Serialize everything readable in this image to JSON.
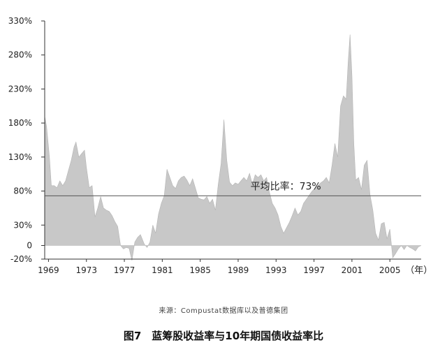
{
  "chart_data": {
    "type": "area",
    "title": "",
    "xlabel": "",
    "ylabel": "",
    "x_unit_label": "（年）",
    "xlim": [
      1968.6,
      2008.3
    ],
    "ylim": [
      -20,
      330
    ],
    "y_ticks": [
      -20,
      0,
      30,
      80,
      130,
      180,
      230,
      280,
      330
    ],
    "y_tick_labels": [
      "-20%",
      "0",
      "30%",
      "80%",
      "130%",
      "180%",
      "230%",
      "280%",
      "330%"
    ],
    "x_ticks": [
      1969,
      1973,
      1977,
      1981,
      1985,
      1989,
      1993,
      1997,
      2001,
      2005
    ],
    "x_tick_labels": [
      "1969",
      "1973",
      "1977",
      "1981",
      "1985",
      "1989",
      "1993",
      "1997",
      "2001",
      "2005"
    ],
    "grid": false,
    "fill_color": "#c8c8c8",
    "reference_line": {
      "value": 73,
      "label": "平均比率：73%"
    },
    "series": [
      {
        "name": "",
        "x": [
          1968.6,
          1968.8,
          1969.1,
          1969.3,
          1969.6,
          1969.9,
          1970.2,
          1970.5,
          1970.8,
          1971.1,
          1971.4,
          1971.7,
          1971.9,
          1972.2,
          1972.5,
          1972.8,
          1973.0,
          1973.3,
          1973.6,
          1973.9,
          1974.2,
          1974.5,
          1974.8,
          1975.1,
          1975.4,
          1975.7,
          1976.0,
          1976.3,
          1976.6,
          1976.9,
          1977.2,
          1977.5,
          1977.8,
          1978.1,
          1978.4,
          1978.7,
          1979.1,
          1979.4,
          1979.7,
          1980.0,
          1980.3,
          1980.6,
          1980.9,
          1981.2,
          1981.5,
          1981.8,
          1982.1,
          1982.4,
          1982.7,
          1983.0,
          1983.3,
          1983.6,
          1983.9,
          1984.2,
          1984.5,
          1984.8,
          1985.1,
          1985.4,
          1985.7,
          1986.0,
          1986.3,
          1986.6,
          1986.9,
          1987.2,
          1987.5,
          1987.8,
          1988.1,
          1988.4,
          1988.7,
          1989.0,
          1989.3,
          1989.6,
          1989.9,
          1990.2,
          1990.5,
          1990.8,
          1991.1,
          1991.4,
          1991.7,
          1992.0,
          1992.3,
          1992.6,
          1992.9,
          1993.2,
          1993.5,
          1993.8,
          1994.1,
          1994.4,
          1994.7,
          1995.0,
          1995.3,
          1995.6,
          1995.9,
          1996.2,
          1996.5,
          1996.8,
          1997.1,
          1997.4,
          1997.7,
          1998.0,
          1998.3,
          1998.6,
          1998.9,
          1999.2,
          1999.5,
          1999.8,
          2000.1,
          2000.4,
          2000.6,
          2000.8,
          2001.0,
          2001.2,
          2001.4,
          2001.7,
          2002.0,
          2002.3,
          2002.6,
          2002.9,
          2003.2,
          2003.5,
          2003.8,
          2004.1,
          2004.4,
          2004.7,
          2005.0,
          2005.3,
          2005.6,
          2005.9,
          2006.2,
          2006.5,
          2006.8,
          2007.1,
          2007.4,
          2007.7,
          2008.0,
          2008.3
        ],
        "values": [
          190,
          175,
          130,
          88,
          88,
          85,
          95,
          88,
          95,
          110,
          125,
          145,
          152,
          130,
          135,
          140,
          115,
          85,
          88,
          42,
          55,
          72,
          55,
          52,
          50,
          44,
          35,
          28,
          0,
          -5,
          -3,
          -4,
          -22,
          5,
          12,
          16,
          2,
          -3,
          5,
          30,
          18,
          46,
          62,
          73,
          112,
          100,
          88,
          84,
          95,
          100,
          102,
          96,
          88,
          98,
          84,
          70,
          68,
          67,
          72,
          62,
          68,
          52,
          90,
          120,
          185,
          125,
          93,
          88,
          92,
          90,
          95,
          100,
          95,
          106,
          90,
          104,
          100,
          104,
          95,
          100,
          78,
          62,
          55,
          45,
          28,
          18,
          26,
          34,
          44,
          55,
          45,
          50,
          62,
          68,
          74,
          80,
          84,
          88,
          92,
          95,
          100,
          92,
          118,
          150,
          130,
          205,
          220,
          215,
          270,
          310,
          250,
          150,
          96,
          100,
          82,
          118,
          125,
          75,
          52,
          18,
          8,
          32,
          34,
          10,
          24,
          -18,
          -12,
          -5,
          0,
          -6,
          0,
          -3,
          -5,
          -8,
          -2,
          0
        ]
      }
    ]
  },
  "source_note": "来源：Compustat数据库以及普德集团",
  "caption": "图7　蓝筹股收益率与10年期国债收益率比"
}
